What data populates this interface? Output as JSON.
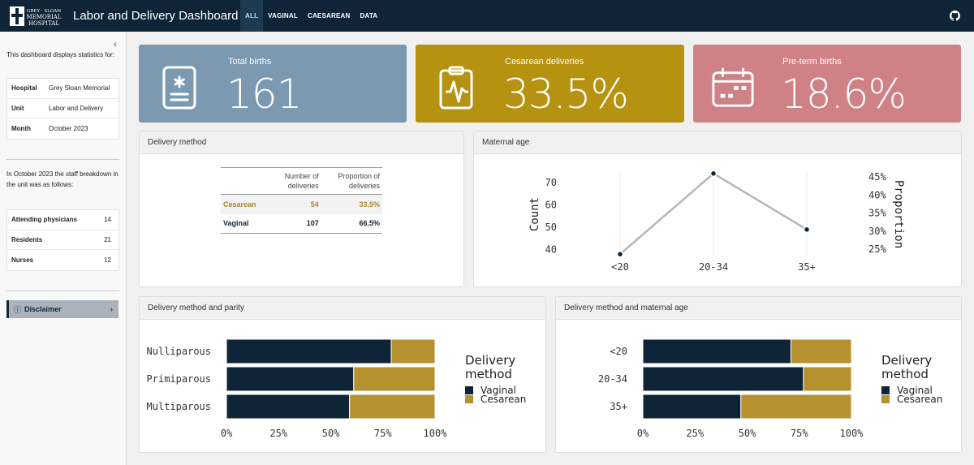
{
  "navbar": {
    "logo_lines": [
      "GREY · SLOAN",
      "MEMORIAL",
      "HOSPITAL"
    ],
    "title": "Labor and Delivery Dashboard",
    "tabs": [
      {
        "label": "ALL",
        "active": true
      },
      {
        "label": "VAGINAL",
        "active": false
      },
      {
        "label": "CAESAREAN",
        "active": false
      },
      {
        "label": "DATA",
        "active": false
      }
    ]
  },
  "sidebar": {
    "collapse_glyph": "‹",
    "intro": "This dashboard displays statistics for:",
    "info": [
      {
        "key": "Hospital",
        "value": "Grey Sloan Memorial"
      },
      {
        "key": "Unit",
        "value": "Labor and Delivery"
      },
      {
        "key": "Month",
        "value": "October 2023"
      }
    ],
    "staff_intro": "In October 2023 the staff breakdown in the unit was as follows:",
    "staff": [
      {
        "key": "Attending physicians",
        "value": "14"
      },
      {
        "key": "Residents",
        "value": "21"
      },
      {
        "key": "Nurses",
        "value": "12"
      }
    ],
    "disclaimer_icon": "ⓘ",
    "disclaimer_label": "Disclaimer",
    "disclaimer_chevron": "›"
  },
  "value_boxes": [
    {
      "title": "Total births",
      "value": "161",
      "color": "#7b99b1",
      "icon": "file-medical-icon"
    },
    {
      "title": "Cesarean deliveries",
      "value": "33.5%",
      "color": "#b5920f",
      "icon": "clipboard-pulse-icon"
    },
    {
      "title": "Pre-term births",
      "value": "18.6%",
      "color": "#d08186",
      "icon": "calendar-week-icon"
    }
  ],
  "delivery_method": {
    "header": "Delivery method",
    "columns": [
      "",
      "Number of deliveries",
      "Proportion of deliveries"
    ],
    "col_line1": [
      "Number of",
      "Proportion of"
    ],
    "col_line2": [
      "deliveries",
      "deliveries"
    ],
    "rows": [
      {
        "method": "Cesarean",
        "count": "54",
        "proportion": "33.5%"
      },
      {
        "method": "Vaginal",
        "count": "107",
        "proportion": "66.5%"
      }
    ]
  },
  "chart_data": [
    {
      "id": "maternal-age",
      "header": "Maternal age",
      "type": "line",
      "categories": [
        "<20",
        "20-34",
        "35+"
      ],
      "values": [
        38,
        74,
        49
      ],
      "ylabel": "Count",
      "ylabel_right": "Proportion",
      "yticks": [
        40,
        50,
        60,
        70
      ],
      "yticks_right": [
        "25%",
        "30%",
        "35%",
        "40%",
        "45%"
      ],
      "ylim": [
        37,
        75
      ],
      "color": "#b0b7be"
    },
    {
      "id": "parity",
      "header": "Delivery method and parity",
      "type": "bar",
      "orientation": "horizontal-stacked-100",
      "categories": [
        "Nulliparous",
        "Primiparous",
        "Multiparous"
      ],
      "series": [
        {
          "name": "Vaginal",
          "color": "#0f2537",
          "values": [
            79,
            61,
            59
          ]
        },
        {
          "name": "Cesarean",
          "color": "#b5912f",
          "values": [
            21,
            39,
            41
          ]
        }
      ],
      "xticks": [
        "0%",
        "25%",
        "50%",
        "75%",
        "100%"
      ],
      "legend_title_lines": [
        "Delivery",
        "method"
      ]
    },
    {
      "id": "age-method",
      "header": "Delivery method and maternal age",
      "type": "bar",
      "orientation": "horizontal-stacked-100",
      "categories": [
        "<20",
        "20-34",
        "35+"
      ],
      "series": [
        {
          "name": "Vaginal",
          "color": "#0f2537",
          "values": [
            71,
            77,
            47
          ]
        },
        {
          "name": "Cesarean",
          "color": "#b5912f",
          "values": [
            29,
            23,
            53
          ]
        }
      ],
      "xticks": [
        "0%",
        "25%",
        "50%",
        "75%",
        "100%"
      ],
      "legend_title_lines": [
        "Delivery",
        "method"
      ]
    }
  ]
}
